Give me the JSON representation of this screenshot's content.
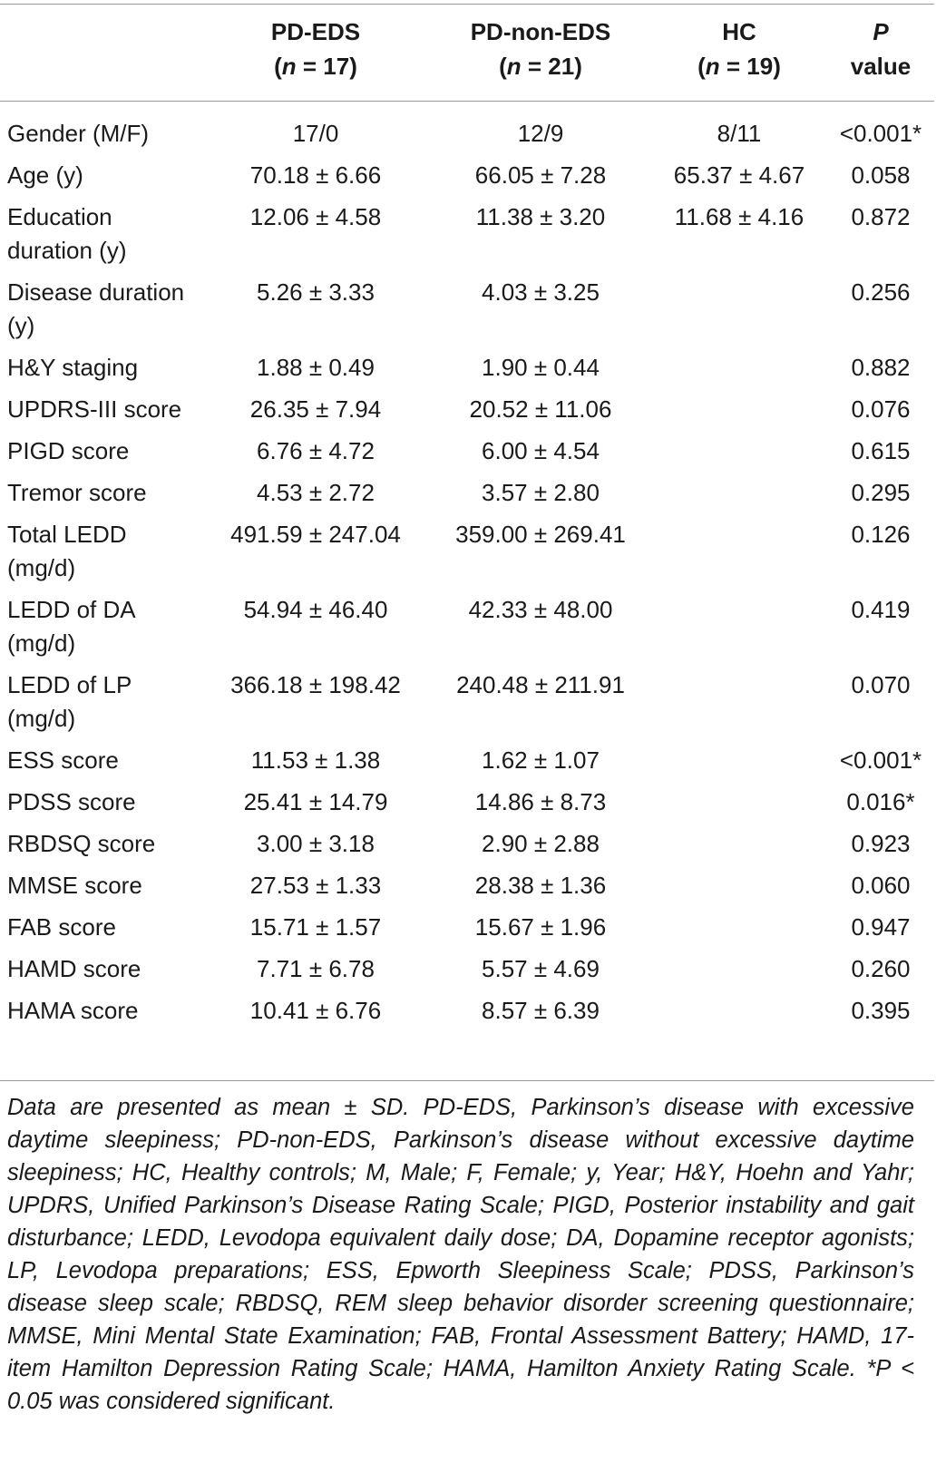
{
  "table": {
    "headers": [
      {
        "name": "",
        "n_prefix": "",
        "n_var": "",
        "n_suffix": ""
      },
      {
        "name": "PD-EDS",
        "n_prefix": "(",
        "n_var": "n",
        "n_suffix": " = 17)"
      },
      {
        "name": "PD-non-EDS",
        "n_prefix": "(",
        "n_var": "n",
        "n_suffix": " = 21)"
      },
      {
        "name": "HC",
        "n_prefix": "(",
        "n_var": "n",
        "n_suffix": " = 19)"
      },
      {
        "name": "P",
        "n_prefix": "",
        "n_var": "",
        "n_suffix": "value"
      }
    ],
    "rows": [
      {
        "label": "Gender (M/F)",
        "pd_eds": "17/0",
        "pd_non_eds": "12/9",
        "hc": "8/11",
        "p": "<0.001*"
      },
      {
        "label": "Age (y)",
        "pd_eds": "70.18 ± 6.66",
        "pd_non_eds": "66.05 ± 7.28",
        "hc": "65.37 ± 4.67",
        "p": "0.058"
      },
      {
        "label": "Education duration (y)",
        "pd_eds": "12.06 ± 4.58",
        "pd_non_eds": "11.38 ± 3.20",
        "hc": "11.68 ± 4.16",
        "p": "0.872"
      },
      {
        "label": "Disease duration (y)",
        "pd_eds": "5.26 ± 3.33",
        "pd_non_eds": "4.03 ± 3.25",
        "hc": "",
        "p": "0.256"
      },
      {
        "label": "H&Y staging",
        "pd_eds": "1.88 ± 0.49",
        "pd_non_eds": "1.90 ± 0.44",
        "hc": "",
        "p": "0.882"
      },
      {
        "label": "UPDRS-III score",
        "pd_eds": "26.35 ± 7.94",
        "pd_non_eds": "20.52 ± 11.06",
        "hc": "",
        "p": "0.076"
      },
      {
        "label": "PIGD score",
        "pd_eds": "6.76 ± 4.72",
        "pd_non_eds": "6.00 ± 4.54",
        "hc": "",
        "p": "0.615"
      },
      {
        "label": "Tremor score",
        "pd_eds": "4.53 ± 2.72",
        "pd_non_eds": "3.57 ± 2.80",
        "hc": "",
        "p": "0.295"
      },
      {
        "label": "Total LEDD (mg/d)",
        "pd_eds": "491.59 ± 247.04",
        "pd_non_eds": "359.00 ± 269.41",
        "hc": "",
        "p": "0.126"
      },
      {
        "label": "LEDD of DA (mg/d)",
        "pd_eds": "54.94 ± 46.40",
        "pd_non_eds": "42.33 ± 48.00",
        "hc": "",
        "p": "0.419"
      },
      {
        "label": "LEDD of LP (mg/d)",
        "pd_eds": "366.18 ± 198.42",
        "pd_non_eds": "240.48 ± 211.91",
        "hc": "",
        "p": "0.070"
      },
      {
        "label": "ESS score",
        "pd_eds": "11.53 ± 1.38",
        "pd_non_eds": "1.62 ± 1.07",
        "hc": "",
        "p": "<0.001*"
      },
      {
        "label": "PDSS score",
        "pd_eds": "25.41 ± 14.79",
        "pd_non_eds": "14.86 ± 8.73",
        "hc": "",
        "p": "0.016*"
      },
      {
        "label": "RBDSQ score",
        "pd_eds": "3.00 ± 3.18",
        "pd_non_eds": "2.90 ± 2.88",
        "hc": "",
        "p": "0.923"
      },
      {
        "label": "MMSE score",
        "pd_eds": "27.53 ± 1.33",
        "pd_non_eds": "28.38 ± 1.36",
        "hc": "",
        "p": "0.060"
      },
      {
        "label": "FAB score",
        "pd_eds": "15.71 ± 1.57",
        "pd_non_eds": "15.67 ± 1.96",
        "hc": "",
        "p": "0.947"
      },
      {
        "label": "HAMD score",
        "pd_eds": "7.71 ± 6.78",
        "pd_non_eds": "5.57 ± 4.69",
        "hc": "",
        "p": "0.260"
      },
      {
        "label": "HAMA score",
        "pd_eds": "10.41 ± 6.76",
        "pd_non_eds": "8.57 ± 6.39",
        "hc": "",
        "p": "0.395"
      }
    ]
  },
  "footnote": "Data are presented as mean ± SD. PD-EDS, Parkinson’s disease with excessive daytime sleepiness; PD-non-EDS, Parkinson’s disease without excessive daytime sleepiness; HC, Healthy controls; M, Male; F, Female; y, Year; H&Y, Hoehn and Yahr; UPDRS, Unified Parkinson’s Disease Rating Scale; PIGD, Posterior instability and gait disturbance; LEDD, Levodopa equivalent daily dose; DA, Dopamine receptor agonists; LP, Levodopa preparations; ESS, Epworth Sleepiness Scale; PDSS, Parkinson’s disease sleep scale; RBDSQ, REM sleep behavior disorder screening questionnaire; MMSE, Mini Mental State Examination; FAB, Frontal Assessment Battery; HAMD, 17-item Hamilton Depression Rating Scale; HAMA, Hamilton Anxiety Rating Scale. *P < 0.05 was considered significant."
}
